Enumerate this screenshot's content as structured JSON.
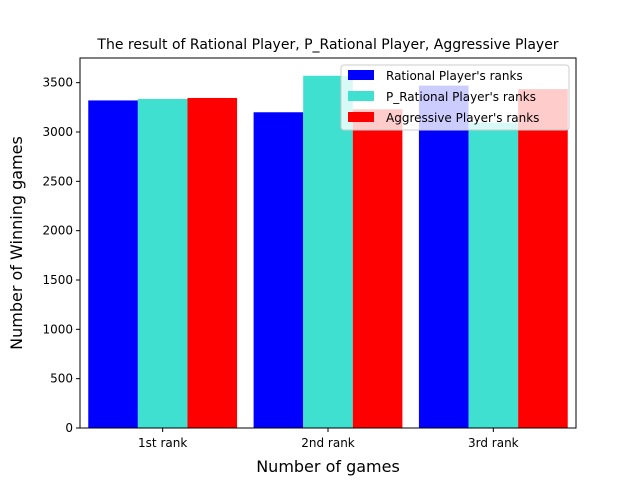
{
  "chart_data": {
    "type": "bar",
    "title": "The result of Rational Player, P_Rational Player, Aggressive Player",
    "xlabel": "Number of games",
    "ylabel": "Number of Winning games",
    "categories": [
      "1st rank",
      "2nd rank",
      "3rd rank"
    ],
    "ylim": [
      0,
      3750
    ],
    "yticks": [
      0,
      500,
      1000,
      1500,
      2000,
      2500,
      3000,
      3500
    ],
    "grid": false,
    "legend_position": "top-right",
    "series": [
      {
        "name": "Rational Player's ranks",
        "color": "#0000ff",
        "values": [
          3320,
          3200,
          3470
        ]
      },
      {
        "name": "P_Rational Player's ranks",
        "color": "#40e0d0",
        "values": [
          3335,
          3570,
          3095
        ]
      },
      {
        "name": "Aggressive Player's ranks",
        "color": "#ff0000",
        "values": [
          3345,
          3230,
          3435
        ]
      }
    ]
  }
}
